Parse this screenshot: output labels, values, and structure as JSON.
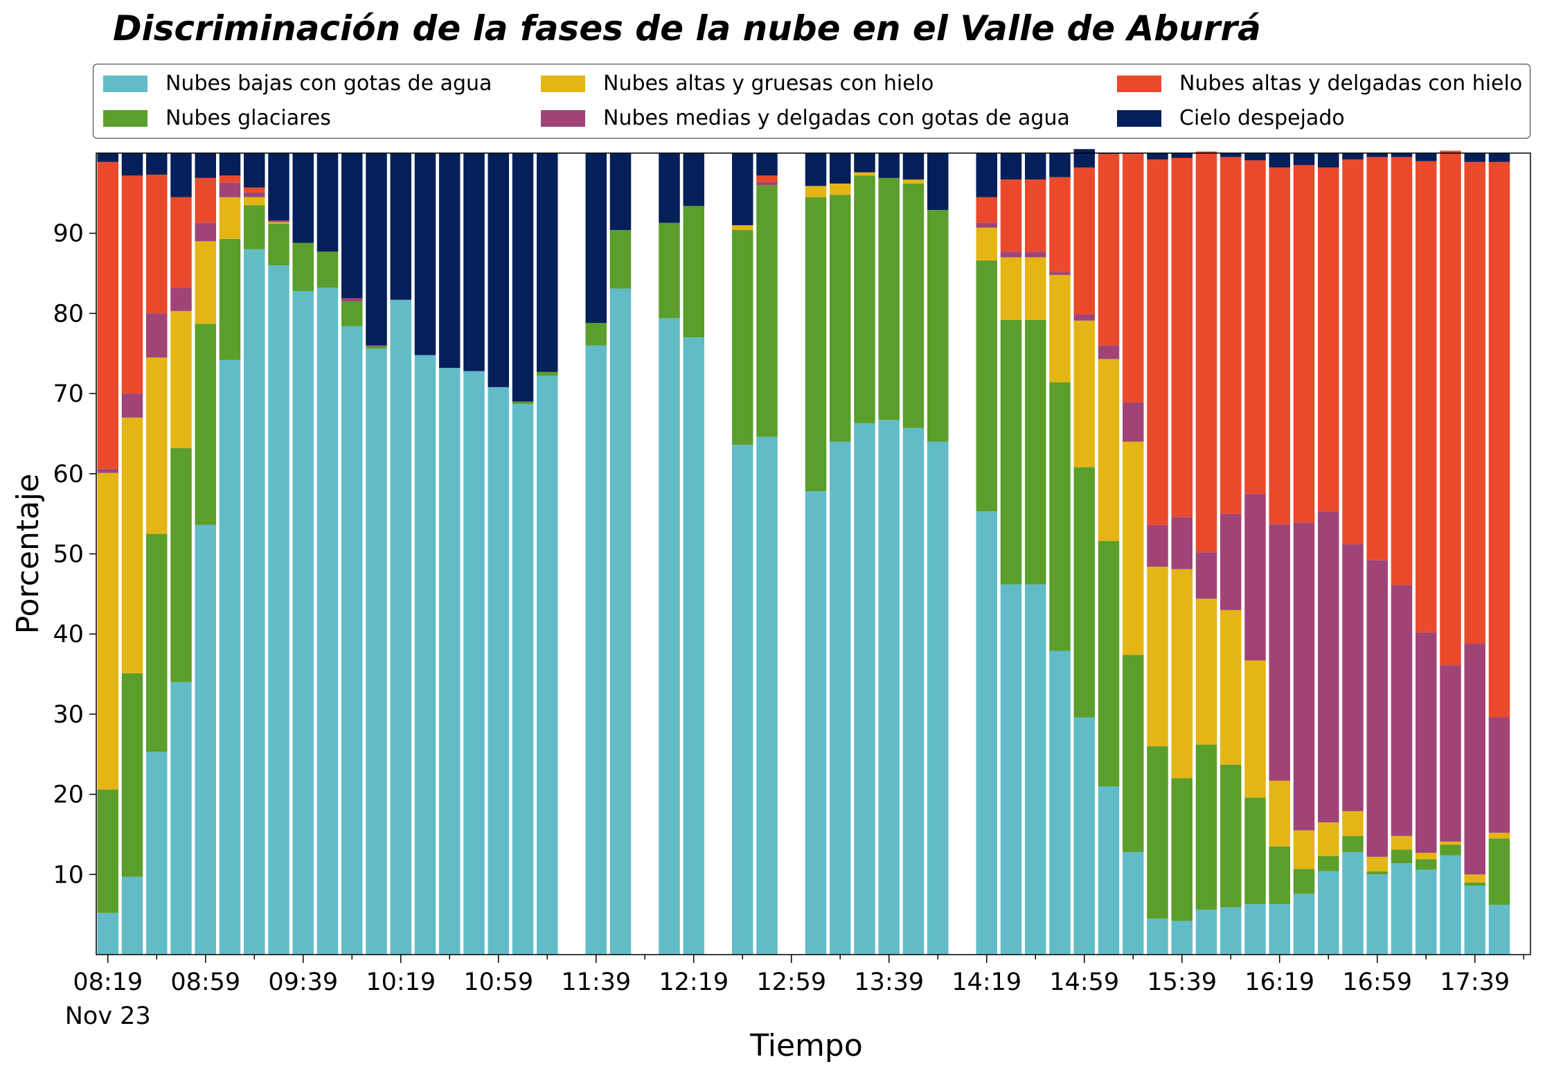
{
  "chart_data": {
    "type": "bar",
    "stacked": true,
    "title": "Discriminación de la fases de la nube en el Valle de Aburrá",
    "xlabel": "Tiempo",
    "ylabel": "Porcentaje",
    "ylim": [
      0,
      100
    ],
    "yticks": [
      10,
      20,
      30,
      40,
      50,
      60,
      70,
      80,
      90
    ],
    "xtick_labels": [
      "08:19",
      "08:59",
      "09:39",
      "10:19",
      "10:59",
      "11:39",
      "12:19",
      "12:59",
      "13:39",
      "14:19",
      "14:59",
      "15:39",
      "16:19",
      "16:59",
      "17:39"
    ],
    "xtick_sublabel": "Nov 23",
    "grid": false,
    "legend_position": "top",
    "legend_columns": 3,
    "series": [
      {
        "name": "Nubes bajas con gotas de agua",
        "color": "#62BCC8",
        "values": [
          5.2,
          9.7,
          25.3,
          34.0,
          53.6,
          74.2,
          88.0,
          86.0,
          82.8,
          83.2,
          78.4,
          75.6,
          81.7,
          74.8,
          73.2,
          72.8,
          70.8,
          68.7,
          72.2,
          null,
          76.0,
          83.1,
          null,
          79.4,
          77.0,
          null,
          63.6,
          64.6,
          null,
          57.8,
          64.0,
          66.3,
          66.7,
          65.7,
          64.0,
          null,
          55.3,
          46.2,
          46.2,
          37.9,
          29.6,
          21.0,
          12.8,
          4.5,
          4.2,
          5.6,
          5.9,
          6.3,
          6.3,
          7.6,
          10.4,
          12.8,
          10.0,
          11.4,
          10.6,
          12.4,
          8.6,
          6.2
        ]
      },
      {
        "name": "Nubes glaciares",
        "color": "#5B9E2B",
        "values": [
          15.4,
          25.4,
          27.2,
          29.2,
          25.1,
          15.1,
          5.5,
          5.2,
          6.0,
          4.5,
          3.1,
          0.3,
          0,
          0,
          0,
          0,
          0,
          0.3,
          0.5,
          null,
          2.8,
          7.3,
          null,
          11.9,
          16.4,
          null,
          26.8,
          31.4,
          null,
          36.7,
          30.8,
          30.9,
          30.2,
          30.5,
          28.9,
          null,
          31.3,
          33.0,
          33.0,
          33.5,
          31.2,
          30.6,
          24.6,
          21.5,
          17.8,
          20.6,
          17.8,
          13.3,
          7.2,
          3.1,
          1.9,
          2.0,
          0.4,
          1.7,
          1.3,
          1.3,
          0.4,
          8.3
        ]
      },
      {
        "name": "Nubes altas y gruesas con hielo",
        "color": "#E4B515",
        "values": [
          39.5,
          31.9,
          22.0,
          17.1,
          10.3,
          5.2,
          1.0,
          0.2,
          0,
          0,
          0,
          0,
          0,
          0,
          0,
          0,
          0,
          0,
          0,
          null,
          0,
          0,
          null,
          0,
          0,
          null,
          0.6,
          0,
          null,
          1.4,
          1.4,
          0.4,
          0,
          0.5,
          0,
          null,
          4.1,
          7.8,
          7.8,
          13.4,
          18.3,
          22.7,
          26.6,
          22.4,
          26.1,
          18.2,
          19.3,
          17.1,
          8.2,
          4.8,
          4.2,
          3.1,
          1.8,
          1.7,
          0.8,
          0.4,
          1.0,
          0.7
        ]
      },
      {
        "name": "Nubes medias y delgadas con gotas de agua",
        "color": "#A04478",
        "values": [
          0.5,
          3.0,
          5.5,
          2.9,
          2.3,
          1.8,
          0.6,
          0.2,
          0,
          0,
          0.4,
          0.1,
          0,
          0,
          0,
          0,
          0,
          0,
          0,
          null,
          0,
          0,
          null,
          0,
          0,
          null,
          0,
          0.4,
          null,
          0,
          0,
          0,
          0,
          0,
          0,
          null,
          0.6,
          0.7,
          0.7,
          0.4,
          0.8,
          1.7,
          4.9,
          5.2,
          6.5,
          5.8,
          12.0,
          20.8,
          32.0,
          38.4,
          38.8,
          33.3,
          37.0,
          31.3,
          27.5,
          22.0,
          28.8,
          14.4
        ]
      },
      {
        "name": "Nubes altas y delgadas con hielo",
        "color": "#EA4A2B",
        "values": [
          38.3,
          27.2,
          17.3,
          11.3,
          5.6,
          0.9,
          0.6,
          0,
          0,
          0,
          0,
          0,
          0,
          0,
          0,
          0,
          0,
          0,
          0,
          null,
          0,
          0,
          null,
          0,
          0,
          null,
          0,
          0.8,
          null,
          0,
          0,
          0,
          0,
          0,
          0,
          null,
          3.2,
          9.0,
          9.0,
          11.8,
          18.3,
          23.9,
          31.1,
          45.6,
          44.8,
          50.0,
          44.5,
          41.6,
          44.5,
          44.6,
          42.9,
          48.0,
          50.3,
          53.4,
          58.8,
          64.2,
          60.1,
          69.3
        ]
      },
      {
        "name": "Cielo despejado",
        "color": "#041F5A",
        "values": [
          1.1,
          2.8,
          2.7,
          5.5,
          3.1,
          2.8,
          4.3,
          8.4,
          11.2,
          12.3,
          18.1,
          24.0,
          18.3,
          25.2,
          26.8,
          27.2,
          29.2,
          31.0,
          27.3,
          null,
          21.2,
          9.6,
          null,
          8.7,
          6.6,
          null,
          9.0,
          2.8,
          null,
          4.1,
          3.8,
          2.4,
          3.1,
          3.3,
          7.1,
          null,
          5.5,
          3.3,
          3.3,
          3.0,
          2.3,
          0.1,
          0,
          0.8,
          0.6,
          0,
          0.5,
          0.9,
          1.8,
          1.5,
          1.8,
          0.8,
          0.5,
          0.5,
          1.0,
          0,
          1.1,
          1.1
        ]
      }
    ]
  }
}
